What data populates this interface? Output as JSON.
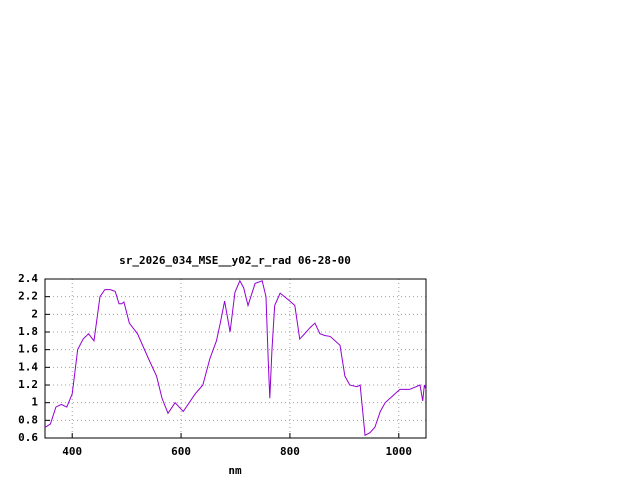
{
  "chart_data": {
    "type": "line",
    "title": "sr_2026_034_MSE__y02_r_rad 06-28-00",
    "x_label": "nm",
    "x": [
      350,
      360,
      370,
      380,
      390,
      400,
      410,
      420,
      430,
      440,
      451,
      460,
      470,
      479,
      486,
      491,
      495,
      505,
      520,
      540,
      555,
      565,
      576,
      589,
      604,
      615,
      626,
      640,
      653,
      665,
      672,
      680,
      690,
      699,
      708,
      715,
      723,
      736,
      749,
      756,
      760,
      763,
      767,
      772,
      782,
      800,
      809,
      818,
      827,
      837,
      846,
      855,
      864,
      874,
      892,
      901,
      910,
      923,
      929,
      938,
      947,
      956,
      966,
      975,
      984,
      1002,
      1020,
      1039,
      1044,
      1047,
      1050
    ],
    "series": [
      {
        "name": "sr_2026_034_MSE__y02_r_rad",
        "color": "#9400d3",
        "values": [
          0.72,
          0.76,
          0.95,
          0.98,
          0.95,
          1.1,
          1.6,
          1.72,
          1.78,
          1.7,
          2.2,
          2.28,
          2.28,
          2.26,
          2.12,
          2.12,
          2.14,
          1.9,
          1.78,
          1.5,
          1.3,
          1.05,
          0.88,
          1.0,
          0.9,
          1.0,
          1.1,
          1.2,
          1.5,
          1.7,
          1.9,
          2.15,
          1.8,
          2.25,
          2.38,
          2.3,
          2.1,
          2.35,
          2.38,
          2.2,
          1.5,
          1.05,
          1.6,
          2.1,
          2.24,
          2.15,
          2.1,
          1.72,
          1.78,
          1.85,
          1.9,
          1.78,
          1.76,
          1.75,
          1.65,
          1.3,
          1.2,
          1.18,
          1.2,
          0.63,
          0.66,
          0.72,
          0.9,
          1.0,
          1.05,
          1.15,
          1.15,
          1.2,
          1.02,
          1.2,
          1.15
        ]
      }
    ],
    "xlim": [
      350,
      1050
    ],
    "ylim": [
      0.6,
      2.4
    ],
    "xticks": [
      400,
      600,
      800,
      1000
    ],
    "yticks": [
      0.6,
      0.8,
      1,
      1.2,
      1.4,
      1.6,
      1.8,
      2,
      2.2,
      2.4
    ],
    "grid": true
  }
}
